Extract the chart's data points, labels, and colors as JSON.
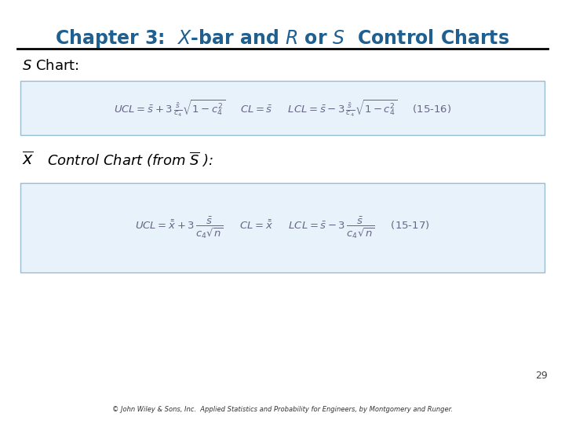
{
  "title_color": "#1F6090",
  "bg_color": "#FFFFFF",
  "formula_box_face": "#E8F2FA",
  "formula_box_edge": "#9BBCCE",
  "formula_text_color": "#666688",
  "page_number": "29",
  "footer_text": "© John Wiley & Sons, Inc.  Applied Statistics and Probability for Engineers, by Montgomery and Runger."
}
